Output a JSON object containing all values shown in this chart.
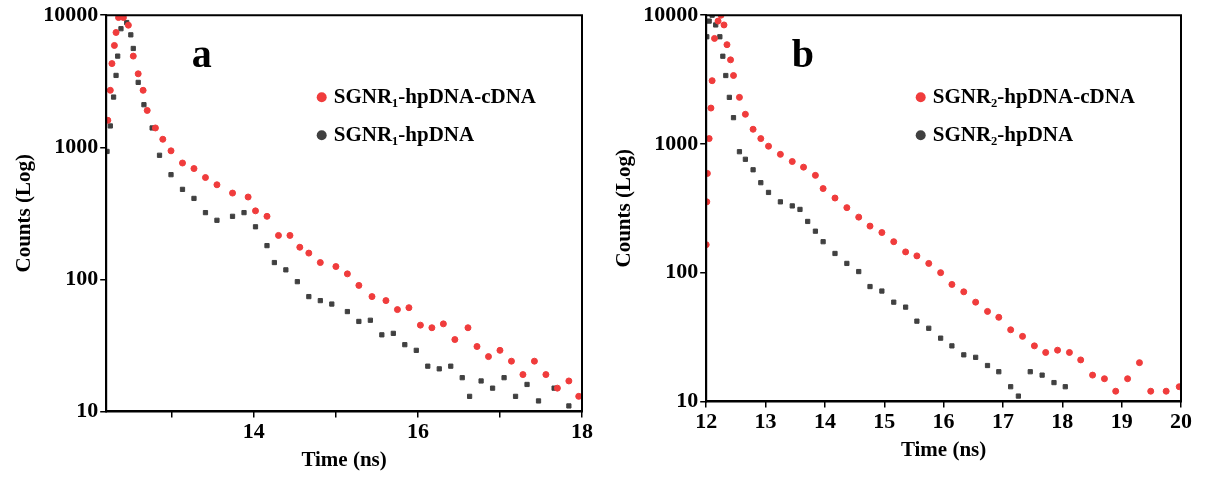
{
  "chart_data": [
    {
      "type": "scatter",
      "xlabel": "Time (ns)",
      "ylabel": "Counts (Log)",
      "annotations": [
        "a"
      ],
      "log": "y",
      "grid": false,
      "legend": "top right",
      "xlim": [
        12.2,
        18
      ],
      "xticks": [
        {
          "value": 13,
          "label": null
        },
        14,
        {
          "value": 15,
          "label": null
        },
        16,
        {
          "value": 17,
          "label": null
        },
        18
      ],
      "ylim": [
        10,
        10000
      ],
      "yticks": [
        10,
        100,
        1000,
        10000
      ],
      "series": [
        {
          "name": "SGNR₁-hpDNA-cDNA",
          "color": "#f03c3c",
          "marker": "circle",
          "x": [
            12.22,
            12.25,
            12.27,
            12.3,
            12.32,
            12.35,
            12.41,
            12.47,
            12.53,
            12.59,
            12.65,
            12.7,
            12.8,
            12.89,
            12.99,
            13.13,
            13.27,
            13.41,
            13.55,
            13.74,
            13.93,
            14.02,
            14.16,
            14.3,
            14.44,
            14.56,
            14.67,
            14.81,
            15.0,
            15.14,
            15.28,
            15.44,
            15.61,
            15.75,
            15.89,
            16.03,
            16.17,
            16.31,
            16.45,
            16.61,
            16.72,
            16.86,
            17.0,
            17.14,
            17.28,
            17.42,
            17.56,
            17.7,
            17.84,
            17.96
          ],
          "values": [
            1600,
            2700,
            4300,
            5900,
            7400,
            9600,
            9600,
            8400,
            4900,
            3600,
            2700,
            1900,
            1400,
            1150,
            940,
            760,
            690,
            590,
            520,
            450,
            420,
            330,
            300,
            215,
            215,
            175,
            158,
            134,
            125,
            110,
            90,
            74,
            69,
            59,
            61,
            45,
            43,
            46,
            35,
            43,
            31,
            26,
            29,
            24,
            19,
            24,
            19,
            15,
            17,
            13
          ]
        },
        {
          "name": "SGNR₁-hpDNA",
          "color": "#404040",
          "marker": "square",
          "x": [
            12.21,
            12.25,
            12.29,
            12.32,
            12.34,
            12.38,
            12.45,
            12.5,
            12.53,
            12.59,
            12.66,
            12.76,
            12.85,
            12.99,
            13.13,
            13.27,
            13.41,
            13.55,
            13.74,
            13.88,
            14.02,
            14.16,
            14.25,
            14.39,
            14.53,
            14.67,
            14.81,
            14.95,
            15.14,
            15.28,
            15.42,
            15.56,
            15.7,
            15.84,
            15.98,
            16.12,
            16.26,
            16.4,
            16.54,
            16.63,
            16.77,
            16.91,
            17.05,
            17.19,
            17.33,
            17.47,
            17.66,
            17.84
          ],
          "values": [
            930,
            1450,
            2400,
            3500,
            4900,
            7900,
            8800,
            7100,
            5600,
            3100,
            2100,
            1400,
            870,
            620,
            480,
            410,
            320,
            280,
            300,
            320,
            250,
            180,
            134,
            118,
            96,
            74,
            69,
            65,
            57,
            48,
            49,
            38,
            39,
            32,
            29,
            22,
            21,
            22,
            18,
            13,
            17,
            15,
            18,
            13,
            16,
            12,
            15,
            11
          ]
        }
      ]
    },
    {
      "type": "scatter",
      "xlabel": "Time (ns)",
      "ylabel": "Counts (Log)",
      "annotations": [
        "b"
      ],
      "log": "y",
      "grid": false,
      "legend": "top right",
      "xlim": [
        12,
        20
      ],
      "xticks": [
        12,
        13,
        14,
        15,
        16,
        17,
        18,
        19,
        20
      ],
      "ylim": [
        10,
        10000
      ],
      "yticks": [
        10,
        100,
        1000,
        10000
      ],
      "series": [
        {
          "name": "SGNR₂-hpDNA-cDNA",
          "color": "#f03c3c",
          "marker": "circle",
          "x": [
            12.0,
            12.01,
            12.02,
            12.05,
            12.08,
            12.1,
            12.14,
            12.2,
            12.25,
            12.3,
            12.35,
            12.41,
            12.46,
            12.56,
            12.66,
            12.79,
            12.92,
            13.05,
            13.25,
            13.45,
            13.64,
            13.84,
            13.97,
            14.17,
            14.37,
            14.57,
            14.76,
            14.96,
            15.16,
            15.36,
            15.55,
            15.75,
            15.95,
            16.14,
            16.34,
            16.54,
            16.74,
            16.93,
            17.13,
            17.33,
            17.53,
            17.72,
            17.92,
            18.12,
            18.31,
            18.51,
            18.71,
            18.9,
            19.1,
            19.3,
            19.49,
            19.75,
            19.97
          ],
          "values": [
            165,
            355,
            590,
            1100,
            1900,
            3100,
            6600,
            9000,
            10000,
            8400,
            5900,
            4500,
            3400,
            2300,
            1700,
            1300,
            1100,
            960,
            830,
            730,
            660,
            570,
            450,
            380,
            320,
            270,
            230,
            205,
            174,
            145,
            135,
            118,
            100,
            81,
            71,
            59,
            50,
            45,
            36,
            32,
            27,
            24,
            25,
            24,
            21,
            16,
            15,
            12,
            15,
            20,
            12,
            12,
            13
          ]
        },
        {
          "name": "SGNR₂-hpDNA",
          "color": "#404040",
          "marker": "square",
          "x": [
            12.01,
            12.05,
            12.1,
            12.16,
            12.23,
            12.28,
            12.33,
            12.39,
            12.46,
            12.56,
            12.66,
            12.79,
            12.92,
            13.05,
            13.25,
            13.45,
            13.58,
            13.71,
            13.84,
            13.97,
            14.17,
            14.37,
            14.57,
            14.76,
            14.96,
            15.16,
            15.36,
            15.55,
            15.75,
            15.95,
            16.14,
            16.34,
            16.54,
            16.74,
            16.93,
            17.13,
            17.26,
            17.46,
            17.66,
            17.86,
            18.05
          ],
          "values": [
            6800,
            9000,
            10000,
            8400,
            6800,
            4800,
            3400,
            2300,
            1600,
            870,
            760,
            630,
            500,
            420,
            355,
            330,
            310,
            250,
            210,
            174,
            141,
            118,
            102,
            78,
            72,
            59,
            54,
            42,
            37,
            31,
            27,
            23,
            22,
            19,
            17,
            13,
            11,
            17,
            16,
            14,
            13
          ]
        }
      ]
    }
  ]
}
